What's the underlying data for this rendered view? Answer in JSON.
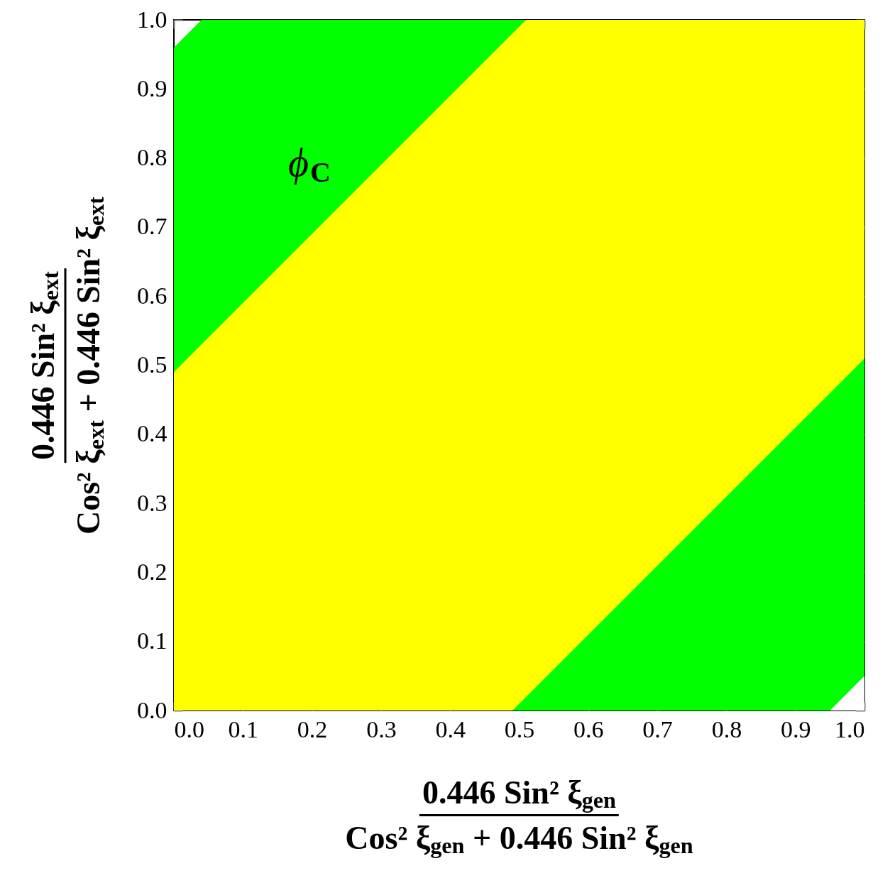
{
  "chart_data": {
    "type": "area",
    "stacked": true,
    "xlabel": "0.446 Sin² ξ$_{gen}$\nCos² ξ$_{gen}$ + 0.446 Sin² ξ$_{gen}$",
    "ylabel": "0.446 Sin² ξ$_{ext}$\nCos² ξ$_{ext}$ + 0.446 Sin² ξ$_{ext}$",
    "x": [
      0,
      0.04,
      0.49,
      0.51,
      0.95,
      1
    ],
    "series": [
      {
        "color": "#ffffff",
        "values": [
          0,
          0,
          0,
          0,
          0,
          0.05
        ]
      },
      {
        "color": "#00ff00",
        "values": [
          0,
          0,
          0,
          0.02,
          0.46,
          0.46
        ]
      },
      {
        "color": "#ffff00",
        "values": [
          0.49,
          0.53,
          0.98,
          0.98,
          0.54,
          0.49
        ]
      },
      {
        "color": "#00ff00",
        "values": [
          0.47,
          0.47,
          0.02,
          0,
          0,
          0
        ]
      }
    ],
    "annotations": [
      "ϕ$_{C}$"
    ],
    "xlim": [
      0,
      1
    ],
    "ylim": [
      0,
      1
    ],
    "xticks": [
      {
        "value": 0,
        "label": "0.0"
      },
      0.1,
      0.2,
      0.3,
      0.4,
      0.5,
      0.6,
      0.7,
      0.8,
      0.9,
      {
        "value": 1,
        "label": "1.0"
      }
    ],
    "yticks": [
      {
        "value": 0,
        "label": "0.0"
      },
      0.1,
      0.2,
      0.3,
      0.4,
      0.5,
      0.6,
      0.7,
      0.8,
      0.9,
      {
        "value": 1,
        "label": "1.0"
      }
    ],
    "grid": false,
    "legend": false
  }
}
